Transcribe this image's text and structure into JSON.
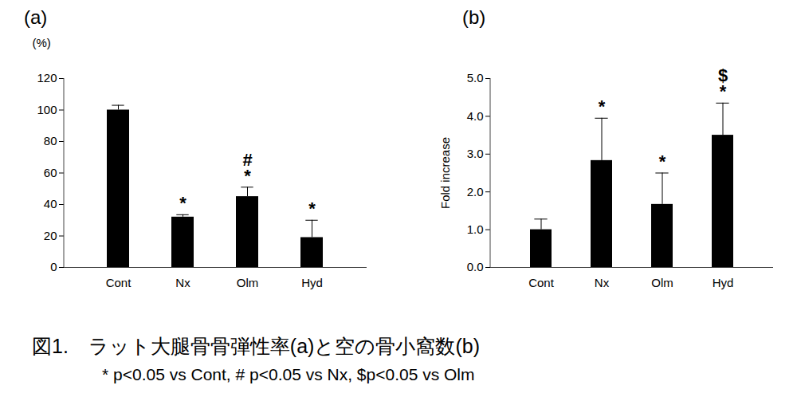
{
  "chart_data": [
    {
      "type": "bar",
      "title": "(a)",
      "y_label": "(%)",
      "categories": [
        "Cont",
        "Nx",
        "Olm",
        "Hyd"
      ],
      "values": [
        100,
        32,
        45,
        19
      ],
      "error": [
        3,
        1.5,
        6,
        11
      ],
      "significance": [
        [],
        [
          "*"
        ],
        [
          "*",
          "#"
        ],
        [
          "*"
        ]
      ],
      "color": "#000000",
      "ylim": [
        0,
        120
      ],
      "yticks": [
        0,
        20,
        40,
        60,
        80,
        100,
        120
      ]
    },
    {
      "type": "bar",
      "title": "(b)",
      "y_label": "Fold increase",
      "categories": [
        "Cont",
        "Nx",
        "Olm",
        "Hyd"
      ],
      "values": [
        1.0,
        2.83,
        1.67,
        3.5
      ],
      "error": [
        0.28,
        1.12,
        0.83,
        0.85
      ],
      "significance": [
        [],
        [
          "*"
        ],
        [
          "*"
        ],
        [
          "*",
          "$"
        ]
      ],
      "color": "#000000",
      "ylim": [
        0,
        5
      ],
      "yticks": [
        {
          "value": 0,
          "label": "0.0"
        },
        {
          "value": 1,
          "label": "1.0"
        },
        {
          "value": 2,
          "label": "2.0"
        },
        {
          "value": 3,
          "label": "3.0"
        },
        {
          "value": 4,
          "label": "4.0"
        },
        {
          "value": 5,
          "label": "5.0"
        }
      ]
    }
  ],
  "caption": [
    "図1.　ラット大腿骨骨弾性率(a)と空の骨小窩数(b)",
    "* p<0.05 vs Cont, # p<0.05 vs Nx, $p<0.05 vs Olm"
  ]
}
